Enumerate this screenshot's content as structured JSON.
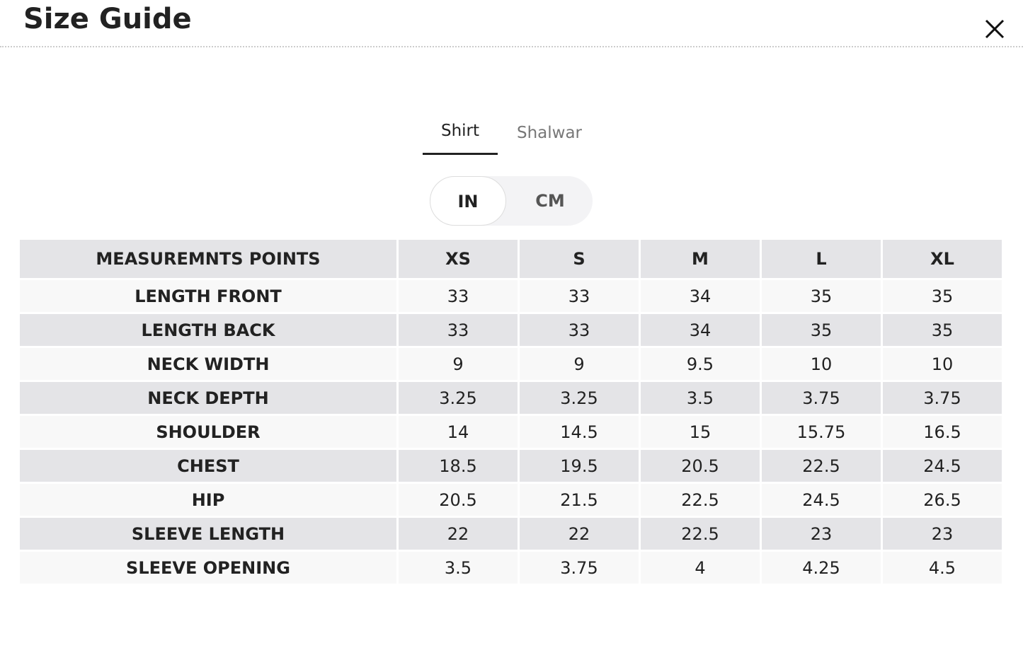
{
  "header": {
    "title": "Size Guide"
  },
  "tabs": [
    "Shirt",
    "Shalwar"
  ],
  "units": [
    "IN",
    "CM"
  ],
  "table": {
    "header": [
      "MEASUREMNTS POINTS",
      "XS",
      "S",
      "M",
      "L",
      "XL"
    ],
    "rows": [
      [
        "LENGTH FRONT",
        33,
        33,
        34,
        35,
        35
      ],
      [
        "LENGTH BACK",
        33,
        33,
        34,
        35,
        35
      ],
      [
        "NECK WIDTH",
        9,
        9,
        9.5,
        10,
        10
      ],
      [
        "NECK DEPTH",
        3.25,
        3.25,
        3.5,
        3.75,
        3.75
      ],
      [
        "SHOULDER",
        14,
        14.5,
        15,
        15.75,
        16.5
      ],
      [
        "CHEST",
        18.5,
        19.5,
        20.5,
        22.5,
        24.5
      ],
      [
        "HIP",
        20.5,
        21.5,
        22.5,
        24.5,
        26.5
      ],
      [
        "SLEEVE LENGTH",
        22,
        22,
        22.5,
        23,
        23
      ],
      [
        "SLEEVE OPENING",
        3.5,
        3.75,
        4,
        4.25,
        4.5
      ]
    ]
  }
}
